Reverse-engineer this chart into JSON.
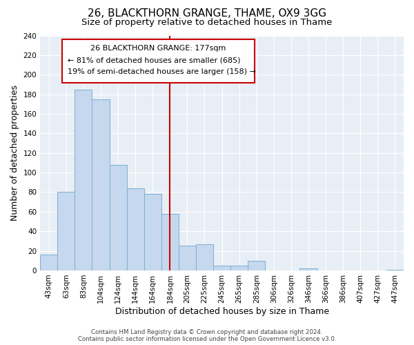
{
  "title": "26, BLACKTHORN GRANGE, THAME, OX9 3GG",
  "subtitle": "Size of property relative to detached houses in Thame",
  "xlabel": "Distribution of detached houses by size in Thame",
  "ylabel": "Number of detached properties",
  "bar_labels": [
    "43sqm",
    "63sqm",
    "83sqm",
    "104sqm",
    "124sqm",
    "144sqm",
    "164sqm",
    "184sqm",
    "205sqm",
    "225sqm",
    "245sqm",
    "265sqm",
    "285sqm",
    "306sqm",
    "326sqm",
    "346sqm",
    "366sqm",
    "386sqm",
    "407sqm",
    "427sqm",
    "447sqm"
  ],
  "bar_heights": [
    16,
    80,
    185,
    175,
    108,
    84,
    78,
    58,
    25,
    27,
    5,
    5,
    10,
    0,
    0,
    2,
    0,
    0,
    0,
    0,
    1
  ],
  "bar_color": "#c5d8ee",
  "bar_edge_color": "#7aafd4",
  "vline_x": 7,
  "vline_color": "#cc0000",
  "ylim": [
    0,
    240
  ],
  "yticks": [
    0,
    20,
    40,
    60,
    80,
    100,
    120,
    140,
    160,
    180,
    200,
    220,
    240
  ],
  "annotation_title": "26 BLACKTHORN GRANGE: 177sqm",
  "annotation_line1": "← 81% of detached houses are smaller (685)",
  "annotation_line2": "19% of semi-detached houses are larger (158) →",
  "annotation_box_color": "#ffffff",
  "annotation_box_edge": "#cc0000",
  "footer1": "Contains HM Land Registry data © Crown copyright and database right 2024.",
  "footer2": "Contains public sector information licensed under the Open Government Licence v3.0.",
  "bg_color": "#ffffff",
  "plot_bg_color": "#e8eef5",
  "title_fontsize": 11,
  "subtitle_fontsize": 9.5,
  "axis_label_fontsize": 9,
  "tick_fontsize": 7.5
}
